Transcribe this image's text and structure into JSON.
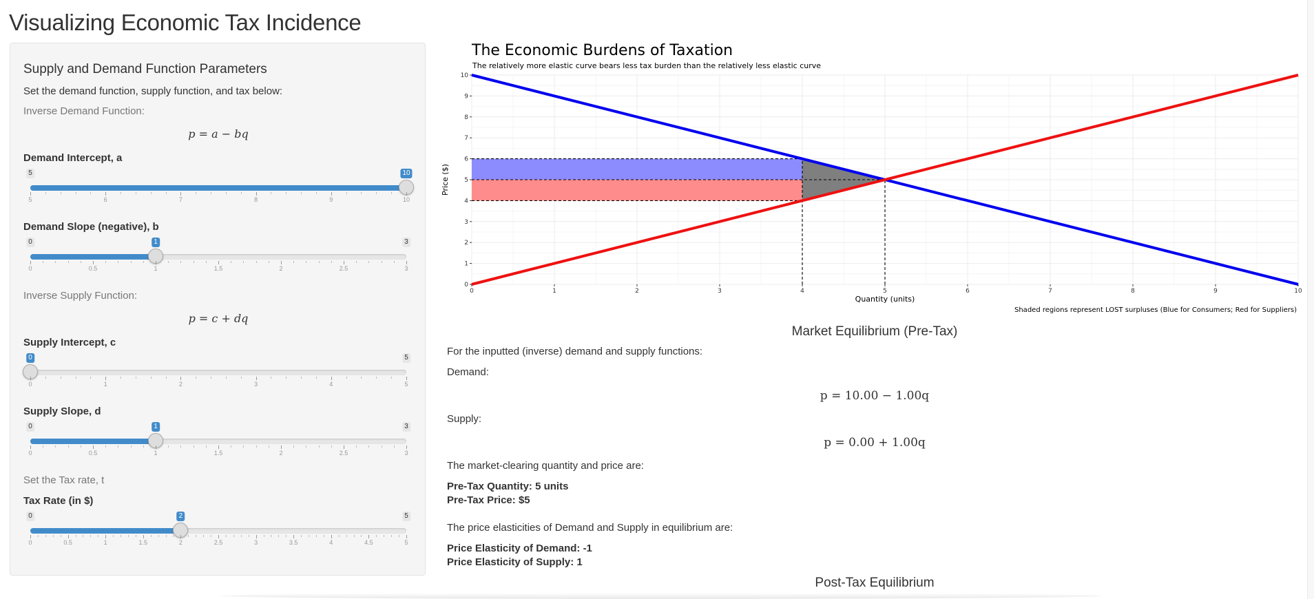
{
  "page": {
    "title": "Visualizing Economic Tax Incidence"
  },
  "sidebar": {
    "heading": "Supply and Demand Function Parameters",
    "intro": "Set the demand function, supply function, and tax below:",
    "demand_function_label": "Inverse Demand Function:",
    "demand_formula": "p = a − bq",
    "supply_function_label": "Inverse Supply Function:",
    "supply_formula": "p = c + dq",
    "tax_prompt": "Set the Tax rate, t",
    "sliders": {
      "demand_intercept": {
        "label": "Demand Intercept, a",
        "min": 5,
        "max": 10,
        "value": 10,
        "min_label": "5",
        "max_label": "10",
        "value_label": "10",
        "ticks": [
          "5",
          "6",
          "7",
          "8",
          "9",
          "10"
        ]
      },
      "demand_slope": {
        "label": "Demand Slope (negative), b",
        "min": 0,
        "max": 3,
        "value": 1,
        "min_label": "0",
        "max_label": "3",
        "value_label": "1",
        "ticks": [
          "0",
          "0.5",
          "1",
          "1.5",
          "2",
          "2.5",
          "3"
        ]
      },
      "supply_intercept": {
        "label": "Supply Intercept, c",
        "min": 0,
        "max": 5,
        "value": 0,
        "min_label": "0",
        "max_label": "5",
        "value_label": "0",
        "ticks": [
          "0",
          "1",
          "2",
          "3",
          "4",
          "5"
        ]
      },
      "supply_slope": {
        "label": "Supply Slope, d",
        "min": 0,
        "max": 3,
        "value": 1,
        "min_label": "0",
        "max_label": "3",
        "value_label": "1",
        "ticks": [
          "0",
          "0.5",
          "1",
          "1.5",
          "2",
          "2.5",
          "3"
        ]
      },
      "tax_rate": {
        "label": "Tax Rate (in $)",
        "min": 0,
        "max": 5,
        "value": 2,
        "min_label": "0",
        "max_label": "5",
        "value_label": "2",
        "ticks": [
          "0",
          "0.5",
          "1",
          "1.5",
          "2",
          "2.5",
          "3",
          "3.5",
          "4",
          "4.5",
          "5"
        ]
      }
    }
  },
  "plot": {
    "title": "The Economic Burdens of Taxation",
    "subtitle": "The relatively more elastic curve bears less tax burden than the relatively less elastic curve",
    "caption": "Shaded regions represent LOST surpluses (Blue for Consumers; Red for Suppliers)"
  },
  "chart_data": {
    "type": "line",
    "xlabel": "Quantity (units)",
    "ylabel": "Price ($)",
    "xlim": [
      0,
      10
    ],
    "ylim": [
      0,
      10
    ],
    "x_ticks": [
      "0",
      "1",
      "2",
      "3",
      "4",
      "5",
      "6",
      "7",
      "8",
      "9",
      "10"
    ],
    "y_ticks": [
      "0",
      "1",
      "2",
      "3",
      "4",
      "5",
      "6",
      "7",
      "8",
      "9",
      "10"
    ],
    "grid": true,
    "series": [
      {
        "color": "#0000ee",
        "points": [
          [
            0,
            10
          ],
          [
            10,
            0
          ]
        ]
      },
      {
        "color": "#ee1111",
        "points": [
          [
            0,
            0
          ],
          [
            10,
            10
          ]
        ]
      }
    ],
    "shaded_regions": [
      {
        "color": "#8c8cff",
        "x": [
          0,
          4
        ],
        "y": [
          5,
          6
        ]
      },
      {
        "color": "#ff8c8c",
        "x": [
          0,
          4
        ],
        "y": [
          4,
          5
        ]
      },
      {
        "color": "#7f7f7f",
        "polygon": [
          [
            4,
            6
          ],
          [
            5,
            5
          ],
          [
            4,
            4
          ]
        ]
      }
    ],
    "reference_lines": {
      "horizontal": [
        {
          "y": 6,
          "x_to": 4
        },
        {
          "y": 5,
          "x_to": 5
        },
        {
          "y": 4,
          "x_to": 4
        }
      ],
      "vertical": [
        {
          "x": 4,
          "y_to": 6
        },
        {
          "x": 5,
          "y_to": 5
        }
      ]
    }
  },
  "pre_tax": {
    "heading": "Market Equilibrium (Pre-Tax)",
    "intro": "For the inputted (inverse) demand and supply functions:",
    "demand_label": "Demand:",
    "demand_equation": "p = 10.00 − 1.00q",
    "supply_label": "Supply:",
    "supply_equation": "p = 0.00 + 1.00q",
    "clearing_text": "The market-clearing quantity and price are:",
    "quantity_line": "Pre-Tax Quantity: 5 units",
    "price_line": "Pre-Tax Price: $5",
    "elasticity_text": "The price elasticities of Demand and Supply in equilibrium are:",
    "demand_elasticity_line": "Price Elasticity of Demand: -1",
    "supply_elasticity_line": "Price Elasticity of Supply: 1"
  },
  "post_tax": {
    "heading": "Post-Tax Equilibrium"
  }
}
